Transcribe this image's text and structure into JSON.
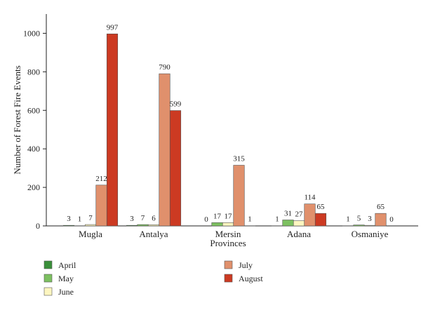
{
  "chart_data": {
    "type": "bar",
    "title": "",
    "xlabel": "Provinces",
    "ylabel": "Number of Forest Fire Events",
    "ylim": [
      0,
      1100
    ],
    "yticks": [
      0,
      200,
      400,
      600,
      800,
      1000
    ],
    "grid": false,
    "legend_position": "bottom",
    "categories": [
      "Mugla",
      "Antalya",
      "Mersin",
      "Adana",
      "Osmaniye"
    ],
    "series": [
      {
        "name": "April",
        "color": "#3a8f3a",
        "values": [
          3,
          3,
          0,
          1,
          1
        ]
      },
      {
        "name": "May",
        "color": "#7cc060",
        "values": [
          1,
          7,
          17,
          31,
          5
        ]
      },
      {
        "name": "June",
        "color": "#fdf6c0",
        "values": [
          7,
          6,
          17,
          27,
          3
        ]
      },
      {
        "name": "July",
        "color": "#e0906c",
        "values": [
          212,
          790,
          315,
          114,
          65
        ]
      },
      {
        "name": "August",
        "color": "#cc3a22",
        "values": [
          997,
          599,
          1,
          65,
          0
        ]
      }
    ]
  }
}
